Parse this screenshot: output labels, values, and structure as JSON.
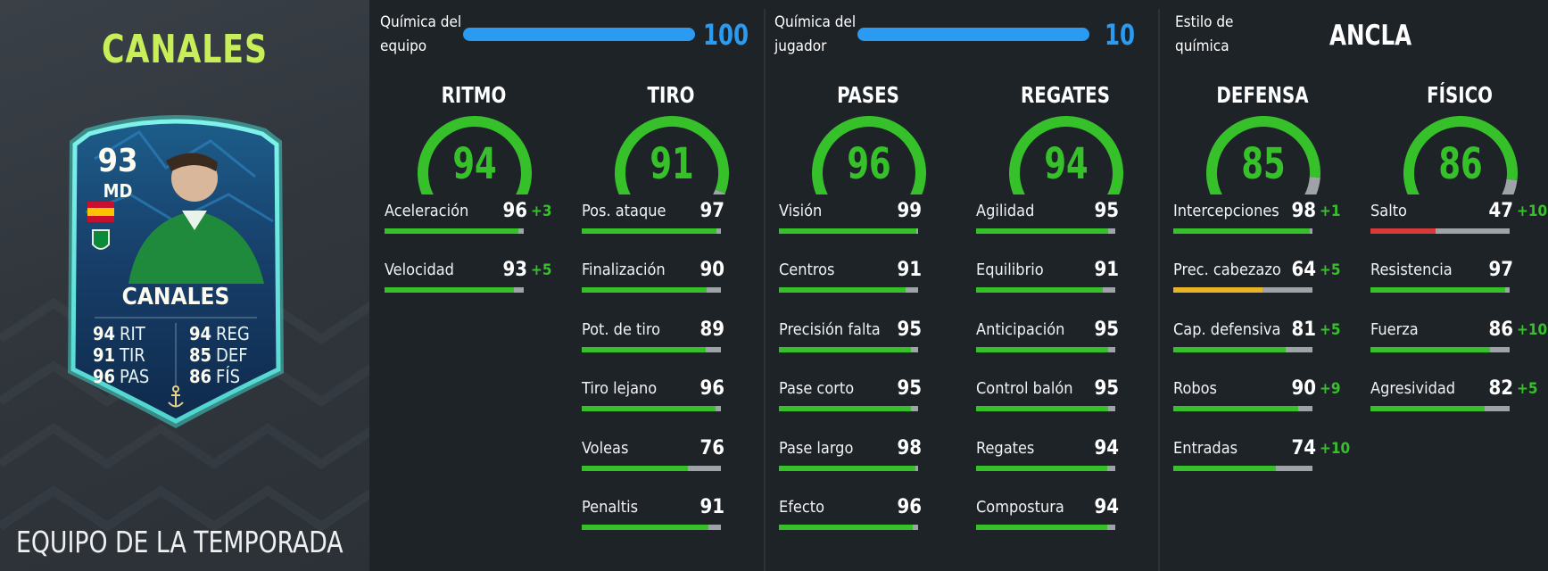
{
  "player": {
    "name": "CANALES",
    "card_name": "CANALES",
    "rating": "93",
    "position": "MD",
    "promo": "EQUIPO DE LA TEMPORADA",
    "card_stats": [
      {
        "value": "94",
        "label": "RIT"
      },
      {
        "value": "91",
        "label": "TIR"
      },
      {
        "value": "96",
        "label": "PAS"
      },
      {
        "value": "94",
        "label": "REG"
      },
      {
        "value": "85",
        "label": "DEF"
      },
      {
        "value": "86",
        "label": "FÍS"
      }
    ]
  },
  "chemistry": {
    "team_label_1": "Química del",
    "team_label_2": "equipo",
    "team_value": "100",
    "team_fraction": 1.0,
    "player_label_1": "Química del",
    "player_label_2": "jugador",
    "player_value": "10",
    "player_fraction": 1.0,
    "style_label_1": "Estilo de",
    "style_label_2": "química",
    "style_value": "ANCLA"
  },
  "categories": [
    {
      "title": "RITMO",
      "value": "94",
      "stats": [
        {
          "label": "Aceleración",
          "value": "96",
          "boost": "+3"
        },
        {
          "label": "Velocidad",
          "value": "93",
          "boost": "+5"
        }
      ]
    },
    {
      "title": "TIRO",
      "value": "91",
      "stats": [
        {
          "label": "Pos. ataque",
          "value": "97",
          "boost": ""
        },
        {
          "label": "Finalización",
          "value": "90",
          "boost": ""
        },
        {
          "label": "Pot. de tiro",
          "value": "89",
          "boost": ""
        },
        {
          "label": "Tiro lejano",
          "value": "96",
          "boost": ""
        },
        {
          "label": "Voleas",
          "value": "76",
          "boost": ""
        },
        {
          "label": "Penaltis",
          "value": "91",
          "boost": ""
        }
      ]
    },
    {
      "title": "PASES",
      "value": "96",
      "stats": [
        {
          "label": "Visión",
          "value": "99",
          "boost": ""
        },
        {
          "label": "Centros",
          "value": "91",
          "boost": ""
        },
        {
          "label": "Precisión falta",
          "value": "95",
          "boost": ""
        },
        {
          "label": "Pase corto",
          "value": "95",
          "boost": ""
        },
        {
          "label": "Pase largo",
          "value": "98",
          "boost": ""
        },
        {
          "label": "Efecto",
          "value": "96",
          "boost": ""
        }
      ]
    },
    {
      "title": "REGATES",
      "value": "94",
      "stats": [
        {
          "label": "Agilidad",
          "value": "95",
          "boost": ""
        },
        {
          "label": "Equilibrio",
          "value": "91",
          "boost": ""
        },
        {
          "label": "Anticipación",
          "value": "95",
          "boost": ""
        },
        {
          "label": "Control balón",
          "value": "95",
          "boost": ""
        },
        {
          "label": "Regates",
          "value": "94",
          "boost": ""
        },
        {
          "label": "Compostura",
          "value": "94",
          "boost": ""
        }
      ]
    },
    {
      "title": "DEFENSA",
      "value": "85",
      "stats": [
        {
          "label": "Intercepciones",
          "value": "98",
          "boost": "+1"
        },
        {
          "label": "Prec. cabezazo",
          "value": "64",
          "boost": "+5"
        },
        {
          "label": "Cap. defensiva",
          "value": "81",
          "boost": "+5"
        },
        {
          "label": "Robos",
          "value": "90",
          "boost": "+9"
        },
        {
          "label": "Entradas",
          "value": "74",
          "boost": "+10"
        }
      ]
    },
    {
      "title": "FÍSICO",
      "value": "86",
      "stats": [
        {
          "label": "Salto",
          "value": "47",
          "boost": "+10"
        },
        {
          "label": "Resistencia",
          "value": "97",
          "boost": ""
        },
        {
          "label": "Fuerza",
          "value": "86",
          "boost": "+10"
        },
        {
          "label": "Agresividad",
          "value": "82",
          "boost": "+5"
        }
      ]
    }
  ],
  "colors": {
    "green": "#36c12b",
    "orange": "#e9b227",
    "red": "#d63a3a",
    "blue": "#2a9bf0",
    "name_green": "#c8ef5a"
  }
}
